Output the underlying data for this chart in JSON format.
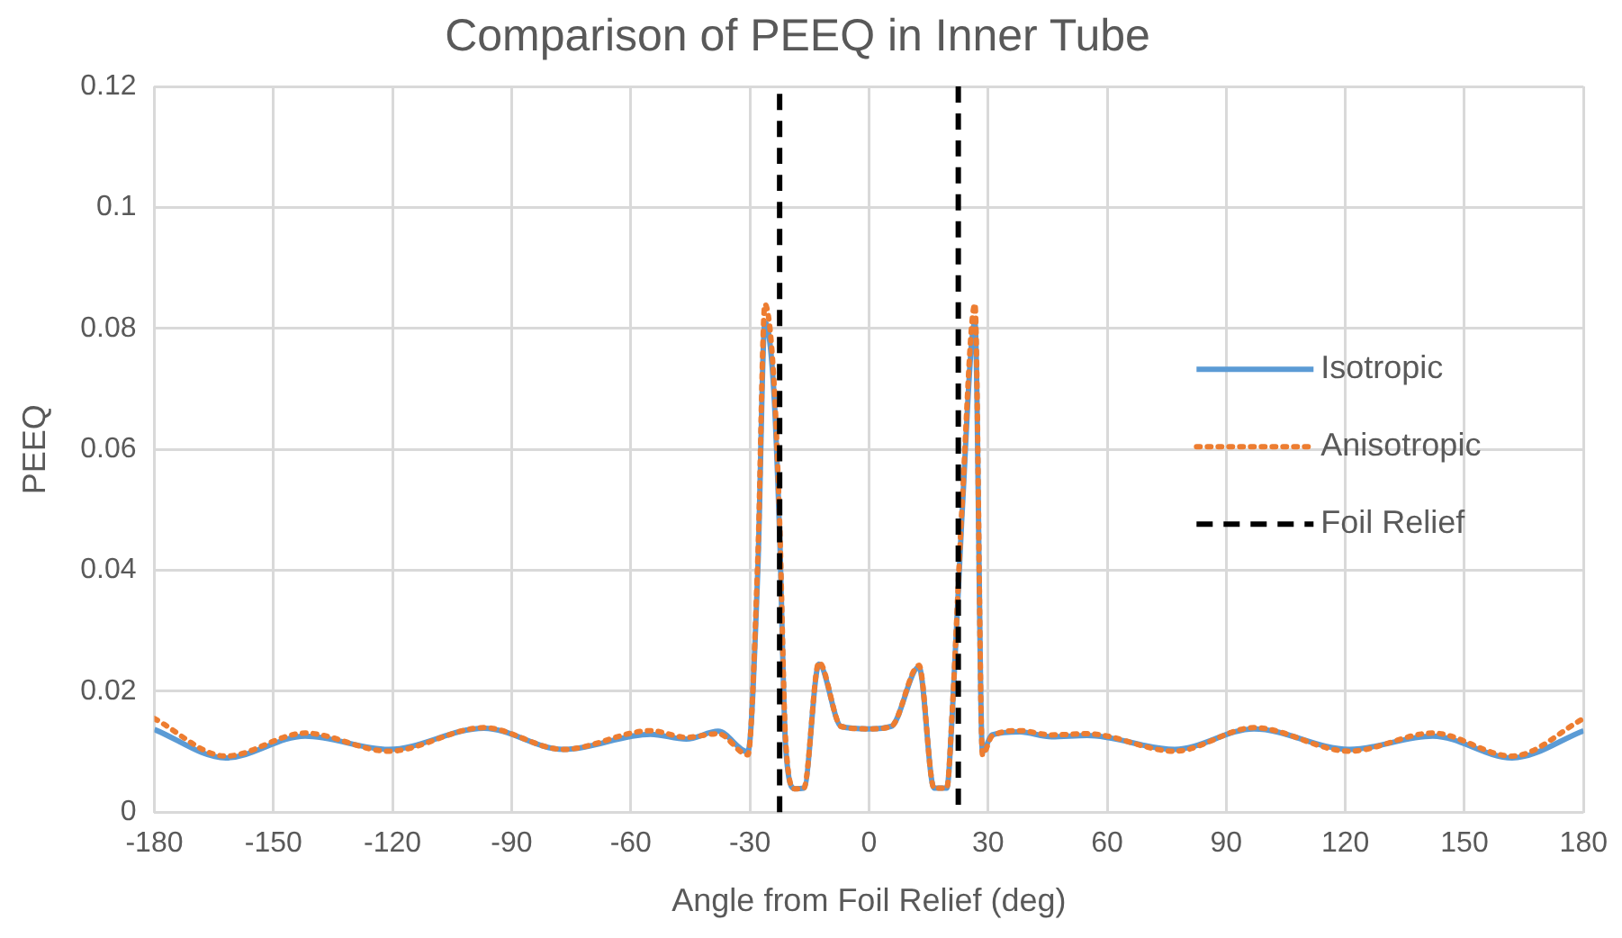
{
  "chart_data": {
    "type": "line",
    "title": "Comparison of PEEQ in Inner Tube",
    "xlabel": "Angle from Foil Relief (deg)",
    "ylabel": "PEEQ",
    "xlim": [
      -180,
      180
    ],
    "xticks": [
      -180,
      -150,
      -120,
      -90,
      -60,
      -30,
      0,
      30,
      60,
      90,
      120,
      150,
      180
    ],
    "ylim": [
      0,
      0.12
    ],
    "yticks": [
      0,
      0.02,
      0.04,
      0.06,
      0.08,
      0.1,
      0.12
    ],
    "grid": true,
    "legend": "right",
    "series": [
      {
        "name": "Isotropic",
        "color": "#5b9bd5",
        "line_style": "solid",
        "x": [
          -180,
          -162,
          -142,
          -121,
          -97,
          -77,
          -55,
          -46,
          -38,
          -30.5,
          -28,
          -26.2,
          -24,
          -22.5,
          -21,
          -18.7,
          -16.4,
          -12.6,
          -7,
          0,
          5.6,
          12.6,
          16.4,
          19.6,
          21,
          23.4,
          26.7,
          28.6,
          31,
          38,
          46,
          55,
          77,
          97,
          121,
          142,
          162,
          180
        ],
        "values": [
          0.0137,
          0.009,
          0.0126,
          0.0104,
          0.0139,
          0.0104,
          0.0129,
          0.0121,
          0.0134,
          0.01,
          0.04,
          0.081,
          0.07,
          0.046,
          0.011,
          0.0039,
          0.004,
          0.0245,
          0.0142,
          0.0138,
          0.0142,
          0.024,
          0.004,
          0.004,
          0.0164,
          0.0487,
          0.081,
          0.01,
          0.0128,
          0.0133,
          0.0125,
          0.0127,
          0.0104,
          0.0138,
          0.0104,
          0.0126,
          0.009,
          0.0135
        ]
      },
      {
        "name": "Anisotropic",
        "color": "#ed7d31",
        "line_style": "dotted",
        "x": [
          -180,
          -162,
          -142,
          -121,
          -97,
          -77,
          -55,
          -46,
          -38,
          -30.5,
          -28,
          -26.2,
          -24,
          -22.5,
          -21,
          -18.7,
          -16.4,
          -12.6,
          -7,
          0,
          5.6,
          12.6,
          16.4,
          19.6,
          21,
          23.4,
          26.7,
          28.6,
          31,
          38,
          46,
          55,
          77,
          97,
          121,
          142,
          162,
          180
        ],
        "values": [
          0.0155,
          0.0093,
          0.0131,
          0.0101,
          0.014,
          0.0104,
          0.0135,
          0.0124,
          0.013,
          0.0095,
          0.042,
          0.084,
          0.072,
          0.048,
          0.012,
          0.0039,
          0.004,
          0.0248,
          0.0142,
          0.0138,
          0.0142,
          0.0243,
          0.004,
          0.004,
          0.017,
          0.05,
          0.084,
          0.0095,
          0.0126,
          0.0135,
          0.0128,
          0.013,
          0.0101,
          0.014,
          0.0101,
          0.0131,
          0.0093,
          0.0155
        ]
      },
      {
        "name": "Foil Relief",
        "color": "#000000",
        "line_style": "dashed",
        "x": [
          -22.5,
          -22.5,
          0,
          22.5,
          22.5
        ],
        "values": [
          0,
          0.12,
          null,
          0.12,
          0
        ]
      }
    ]
  }
}
